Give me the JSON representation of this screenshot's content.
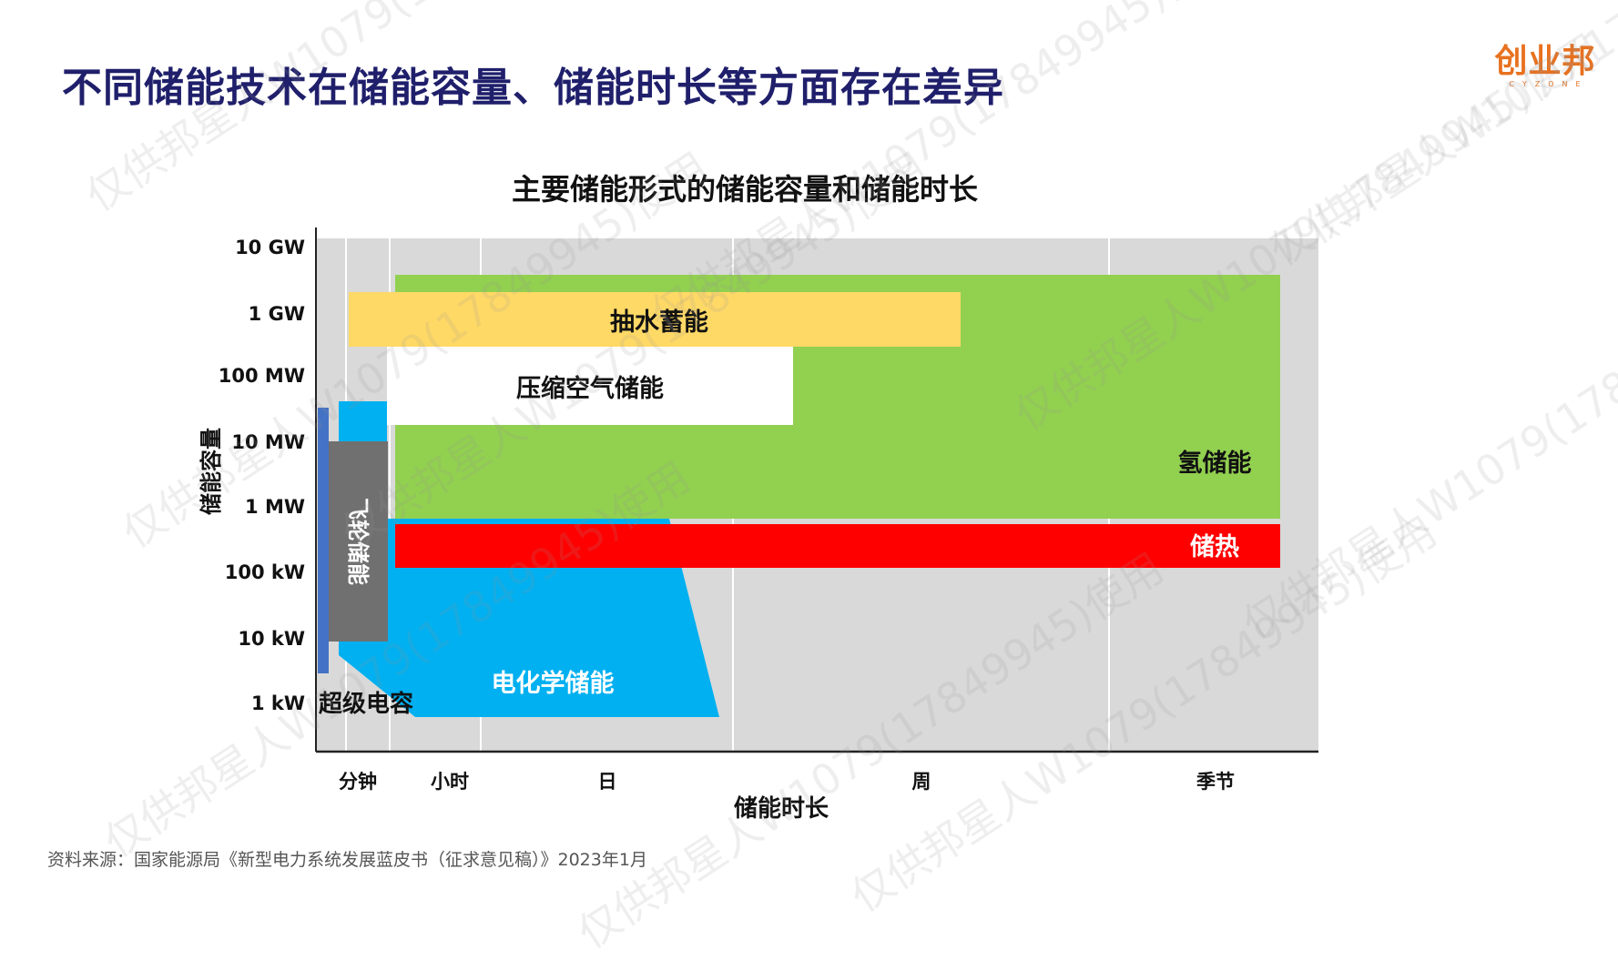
{
  "slide": {
    "title": "不同储能技术在储能容量、储能时长等方面存在差异",
    "source": "资料来源：国家能源局《新型电力系统发展蓝皮书（征求意见稿）》2023年1月"
  },
  "logo": {
    "text": "创业邦",
    "subtext": "CYZONE"
  },
  "watermark": {
    "text": "仅供邦星人W1079(17849945)使用"
  },
  "chart_data": {
    "type": "area",
    "title": "主要储能形式的储能容量和储能时长",
    "xlabel": "储能时长",
    "ylabel": "储能容量",
    "x_ticks": [
      "分钟",
      "小时",
      "日",
      "周",
      "季节"
    ],
    "y_ticks": [
      "1 kW",
      "10 kW",
      "100 kW",
      "1 MW",
      "10 MW",
      "100 MW",
      "1 GW",
      "10 GW"
    ],
    "y_scale": "log",
    "grid": "vertical",
    "regions": [
      {
        "name": "氢储能",
        "color": "#92d050",
        "label_color": "#111111",
        "x_range": [
          "小时",
          "季节"
        ],
        "y_range": [
          "1 MW",
          "1 GW"
        ]
      },
      {
        "name": "抽水蓄能",
        "color": "#ffd966",
        "label_color": "#111111",
        "x_range": [
          "分钟",
          "周"
        ],
        "y_range": [
          "300 MW",
          "3 GW"
        ]
      },
      {
        "name": "压缩空气储能",
        "color": "#ffffff",
        "label_color": "#111111",
        "x_range": [
          "小时",
          "日"
        ],
        "y_range": [
          "10 MW",
          "300 MW"
        ]
      },
      {
        "name": "储热",
        "color": "#ff0000",
        "label_color": "#ffffff",
        "x_range": [
          "小时",
          "季节"
        ],
        "y_range": [
          "100 kW",
          "1 MW"
        ]
      },
      {
        "name": "电化学储能",
        "color": "#00b0f0",
        "label_color": "#ffffff",
        "x_range": [
          "分钟",
          "日"
        ],
        "y_range": [
          "1 kW",
          "10 MW"
        ]
      },
      {
        "name": "飞轮储能",
        "color": "#707070",
        "label_color": "#ffffff",
        "x_range": [
          "秒",
          "分钟"
        ],
        "y_range": [
          "10 kW",
          "10 MW"
        ]
      },
      {
        "name": "超级电容",
        "color": "#4472c4",
        "label_color": "#111111",
        "x_range": [
          "秒",
          "分钟"
        ],
        "y_range": [
          "1 kW",
          "10 MW"
        ]
      }
    ]
  }
}
